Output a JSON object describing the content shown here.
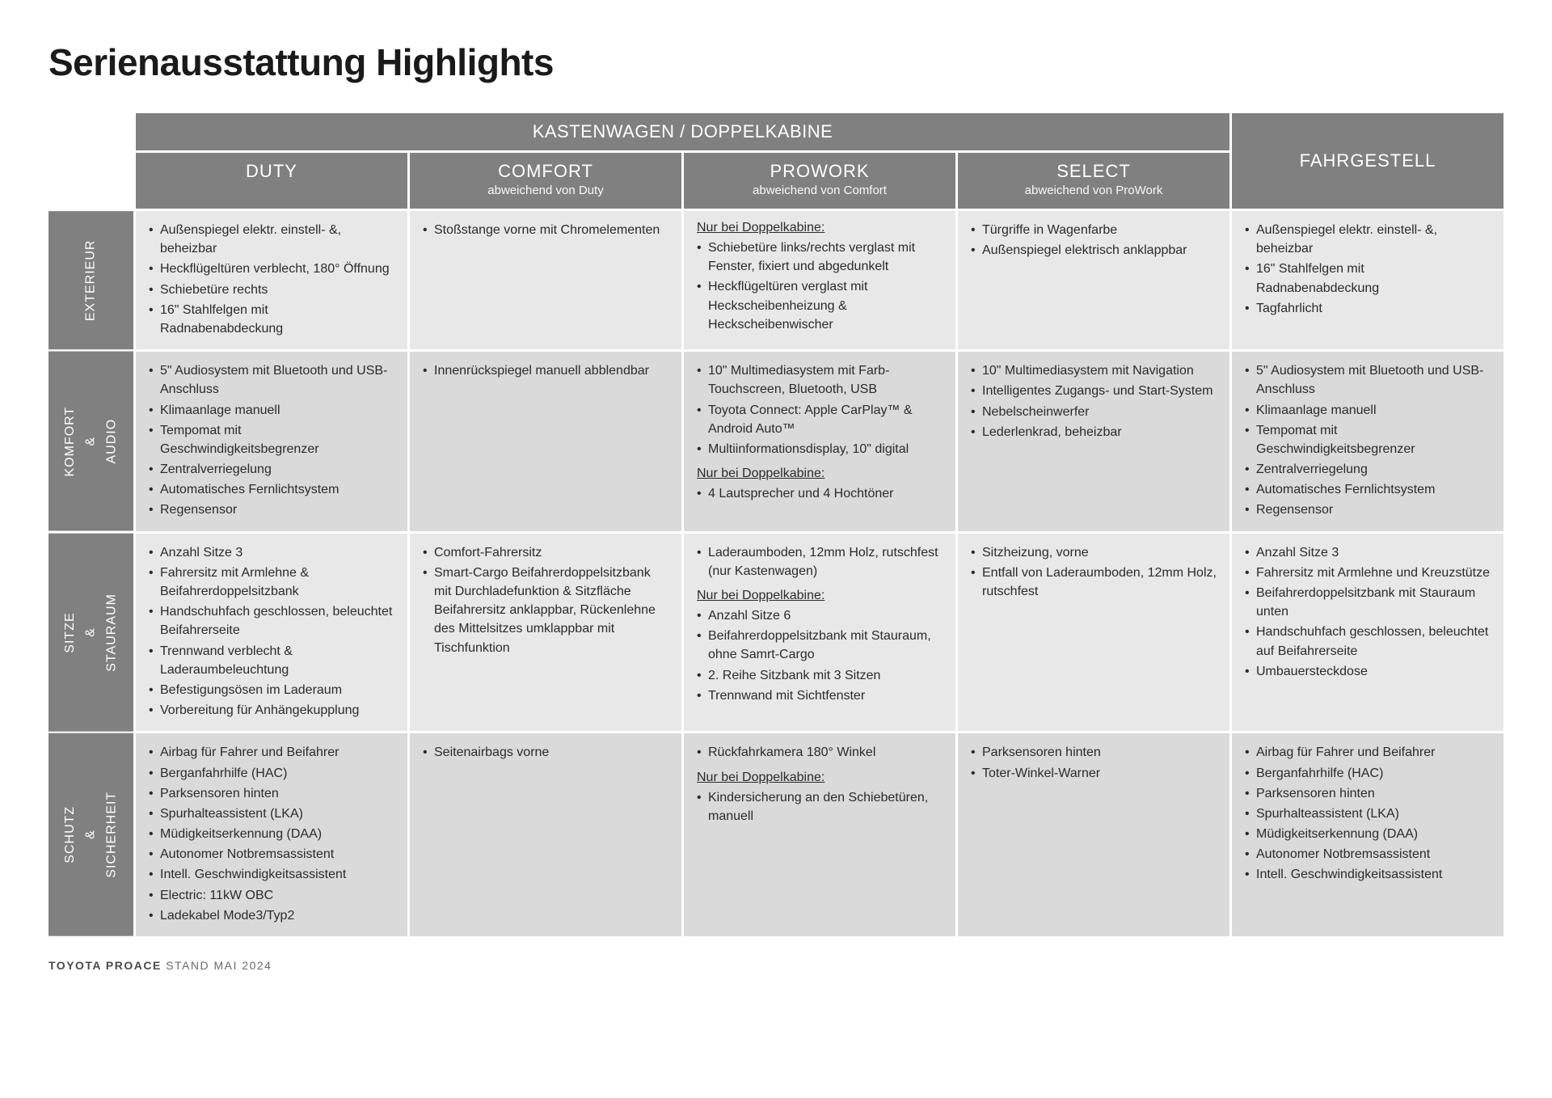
{
  "page": {
    "title": "Serienausstattung Highlights",
    "footer_brand": "TOYOTA PROACE",
    "footer_date": "STAND MAI 2024"
  },
  "colors": {
    "header_bg": "#808080",
    "header_fg": "#ffffff",
    "cell_a": "#e8e8e8",
    "cell_b": "#dadada",
    "text": "#2b2b2b",
    "page_bg": "#ffffff"
  },
  "headers": {
    "super": "KASTENWAGEN / DOPPELKABINE",
    "cols": [
      {
        "title": "DUTY",
        "sub": ""
      },
      {
        "title": "COMFORT",
        "sub": "abweichend von Duty"
      },
      {
        "title": "PROWORK",
        "sub": "abweichend von Comfort"
      },
      {
        "title": "SELECT",
        "sub": "abweichend von ProWork"
      }
    ],
    "fahrgestell": "FAHRGESTELL"
  },
  "rows": [
    {
      "label": "EXTERIEUR",
      "cells": [
        {
          "blocks": [
            {
              "items": [
                "Außenspiegel elektr. einstell- &, beheizbar",
                "Heckflügeltüren verblecht, 180° Öffnung",
                "Schiebetüre rechts",
                "16\" Stahlfelgen mit Radnabenabdeckung"
              ]
            }
          ]
        },
        {
          "blocks": [
            {
              "items": [
                "Stoßstange vorne mit Chromelementen"
              ]
            }
          ]
        },
        {
          "blocks": [
            {
              "head": "Nur bei Doppelkabine:",
              "items": [
                "Schiebetüre links/rechts verglast mit Fenster, fixiert und abgedunkelt",
                "Heckflügeltüren verglast mit Heckscheibenheizung & Heckscheibenwischer"
              ]
            }
          ]
        },
        {
          "blocks": [
            {
              "items": [
                "Türgriffe in Wagenfarbe",
                "Außenspiegel elektrisch anklappbar"
              ]
            }
          ]
        },
        {
          "blocks": [
            {
              "items": [
                "Außenspiegel elektr. einstell- &, beheizbar",
                "16\" Stahlfelgen mit Radnabenabdeckung",
                "Tagfahrlicht"
              ]
            }
          ]
        }
      ]
    },
    {
      "label": "KOMFORT\n&\nAUDIO",
      "cells": [
        {
          "blocks": [
            {
              "items": [
                "5\" Audiosystem mit Bluetooth und USB-Anschluss",
                "Klimaanlage manuell",
                "Tempomat mit Geschwindigkeitsbegrenzer",
                "Zentralverriegelung",
                "Automatisches Fernlichtsystem",
                "Regensensor"
              ]
            }
          ]
        },
        {
          "blocks": [
            {
              "items": [
                "Innenrückspiegel manuell abblendbar"
              ]
            }
          ]
        },
        {
          "blocks": [
            {
              "items": [
                "10\" Multimediasystem mit Farb-Touchscreen, Bluetooth, USB",
                "Toyota Connect: Apple CarPlay™ & Android Auto™",
                "Multiinformationsdisplay, 10\" digital"
              ]
            },
            {
              "head": "Nur bei Doppelkabine:",
              "items": [
                "4 Lautsprecher und 4 Hochtöner"
              ]
            }
          ]
        },
        {
          "blocks": [
            {
              "items": [
                "10\" Multimediasystem mit Navigation",
                "Intelligentes Zugangs- und Start-System",
                "Nebelscheinwerfer",
                "Lederlenkrad, beheizbar"
              ]
            }
          ]
        },
        {
          "blocks": [
            {
              "items": [
                "5\" Audiosystem mit Bluetooth und USB-Anschluss",
                "Klimaanlage manuell",
                "Tempomat mit Geschwindigkeitsbegrenzer",
                "Zentralverriegelung",
                "Automatisches Fernlichtsystem",
                "Regensensor"
              ]
            }
          ]
        }
      ]
    },
    {
      "label": "SITZE\n&\nSTAURAUM",
      "cells": [
        {
          "blocks": [
            {
              "items": [
                "Anzahl Sitze 3",
                "Fahrersitz mit Armlehne & Beifahrerdoppelsitzbank",
                "Handschuhfach geschlossen, beleuchtet Beifahrerseite",
                "Trennwand verblecht & Laderaumbeleuchtung",
                "Befestigungsösen im Laderaum",
                "Vorbereitung für Anhängekupplung"
              ]
            }
          ]
        },
        {
          "blocks": [
            {
              "items": [
                "Comfort-Fahrersitz",
                "Smart-Cargo Beifahrerdoppelsitzbank mit Durchladefunktion & Sitzfläche Beifahrersitz anklappbar, Rückenlehne des Mittelsitzes umklappbar mit Tischfunktion"
              ]
            }
          ]
        },
        {
          "blocks": [
            {
              "items": [
                "Laderaumboden, 12mm Holz, rutschfest (nur Kastenwagen)"
              ]
            },
            {
              "head": "Nur bei Doppelkabine:",
              "items": [
                "Anzahl Sitze 6",
                "Beifahrerdoppelsitzbank mit Stauraum, ohne Samrt-Cargo",
                "2. Reihe Sitzbank mit 3 Sitzen",
                "Trennwand mit Sichtfenster"
              ]
            }
          ]
        },
        {
          "blocks": [
            {
              "items": [
                "Sitzheizung, vorne",
                "Entfall von Laderaumboden, 12mm Holz, rutschfest"
              ]
            }
          ]
        },
        {
          "blocks": [
            {
              "items": [
                "Anzahl Sitze 3",
                "Fahrersitz mit Armlehne und Kreuzstütze",
                "Beifahrerdoppelsitzbank mit Stauraum unten",
                "Handschuhfach geschlossen, beleuchtet auf Beifahrerseite",
                "Umbauersteckdose"
              ]
            }
          ]
        }
      ]
    },
    {
      "label": "SCHUTZ\n&\nSICHERHEIT",
      "cells": [
        {
          "blocks": [
            {
              "items": [
                "Airbag für Fahrer und Beifahrer",
                "Berganfahrhilfe (HAC)",
                "Parksensoren hinten",
                "Spurhalteassistent (LKA)",
                "Müdigkeitserkennung (DAA)",
                "Autonomer Notbremsassistent",
                "Intell. Geschwindigkeitsassistent",
                "Electric: 11kW OBC",
                "Ladekabel Mode3/Typ2"
              ]
            }
          ]
        },
        {
          "blocks": [
            {
              "items": [
                "Seitenairbags vorne"
              ]
            }
          ]
        },
        {
          "blocks": [
            {
              "items": [
                "Rückfahrkamera 180° Winkel"
              ]
            },
            {
              "head": "Nur bei Doppelkabine:",
              "items": [
                "Kindersicherung an den Schiebetüren, manuell"
              ]
            }
          ]
        },
        {
          "blocks": [
            {
              "items": [
                "Parksensoren hinten",
                "Toter-Winkel-Warner"
              ]
            }
          ]
        },
        {
          "blocks": [
            {
              "items": [
                "Airbag für Fahrer und Beifahrer",
                "Berganfahrhilfe (HAC)",
                "Parksensoren hinten",
                "Spurhalteassistent (LKA)",
                "Müdigkeitserkennung (DAA)",
                "Autonomer Notbremsassistent",
                "Intell. Geschwindigkeitsassistent"
              ]
            }
          ]
        }
      ]
    }
  ]
}
